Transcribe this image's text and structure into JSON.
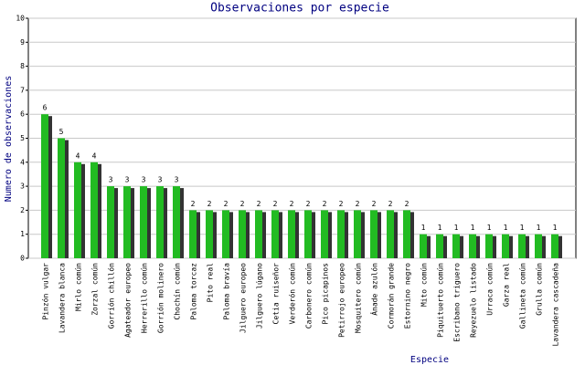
{
  "chart_data": {
    "type": "bar",
    "title": "Observaciones por especie",
    "x_label": "Especie",
    "y_label": "Numero de observaciones",
    "categories": [
      "Pinzón vulgar",
      "Lavandera blanca",
      "Mirlo común",
      "Zorzal común",
      "Gorrión chillón",
      "Agateador europeo",
      "Herrerillo común",
      "Gorrión molinero",
      "Chochín común",
      "Paloma torcaz",
      "Pito real",
      "Paloma bravía",
      "Jilguero europeo",
      "Jilguero lúgano",
      "Cetia ruiseñor",
      "Verderón común",
      "Carbonero común",
      "Pico picapinos",
      "Petirrojo europeo",
      "Mosquitero común",
      "Ánade azulón",
      "Cormorán grande",
      "Estornino negro",
      "Mito común",
      "Piquituerto común",
      "Escribano triguero",
      "Reyezuelo listado",
      "Urraca común",
      "Garza real",
      "Gallineta común",
      "Grulla común",
      "Lavandera cascadeña"
    ],
    "values": [
      6,
      5,
      4,
      4,
      3,
      3,
      3,
      3,
      3,
      2,
      2,
      2,
      2,
      2,
      2,
      2,
      2,
      2,
      2,
      2,
      2,
      2,
      2,
      1,
      1,
      1,
      1,
      1,
      1,
      1,
      1,
      1
    ],
    "color": "#22bb22",
    "shadow_color": "#333333",
    "ylim": [
      0,
      10
    ],
    "yticks": [
      0,
      1,
      2,
      3,
      4,
      5,
      6,
      7,
      8,
      9,
      10
    ],
    "grid": true
  }
}
